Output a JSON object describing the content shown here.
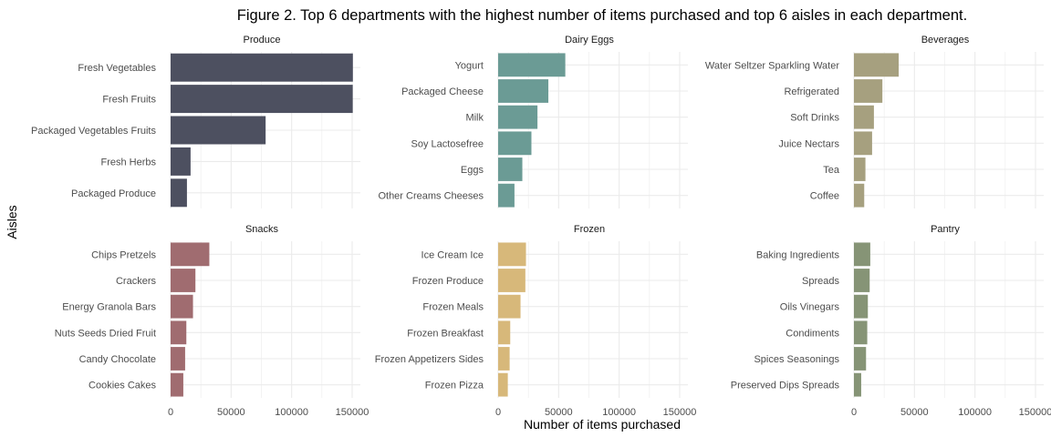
{
  "chart_data": {
    "type": "bar",
    "orientation": "horizontal",
    "title": "Figure 2. Top 6 departments with the highest number of items purchased and top 6 aisles in each department.",
    "xlabel": "Number of items purchased",
    "ylabel": "Aisles",
    "xlim": [
      0,
      155000
    ],
    "x_ticks": [
      0,
      50000,
      100000,
      150000
    ],
    "x_tick_labels": [
      "0",
      "50000",
      "100000",
      "150000"
    ],
    "grid": true,
    "panels": [
      {
        "department": "Produce",
        "color": "#4d5060",
        "categories": [
          "Fresh Vegetables",
          "Fresh Fruits",
          "Packaged Vegetables Fruits",
          "Fresh Herbs",
          "Packaged Produce"
        ],
        "values": [
          150600,
          150500,
          78500,
          16500,
          13500
        ]
      },
      {
        "department": "Dairy Eggs",
        "color": "#6b9b95",
        "categories": [
          "Yogurt",
          "Packaged Cheese",
          "Milk",
          "Soy Lactosefree",
          "Eggs",
          "Other Creams Cheeses"
        ],
        "values": [
          55500,
          41500,
          32500,
          27500,
          20000,
          13500
        ]
      },
      {
        "department": "Beverages",
        "color": "#a6a07f",
        "categories": [
          "Water Seltzer Sparkling Water",
          "Refrigerated",
          "Soft Drinks",
          "Juice Nectars",
          "Tea",
          "Coffee"
        ],
        "values": [
          37000,
          23500,
          16500,
          15000,
          9500,
          8500
        ]
      },
      {
        "department": "Snacks",
        "color": "#a06c70",
        "categories": [
          "Chips Pretzels",
          "Crackers",
          "Energy Granola Bars",
          "Nuts Seeds Dried Fruit",
          "Candy Chocolate",
          "Cookies Cakes"
        ],
        "values": [
          32000,
          20500,
          18500,
          13000,
          12000,
          10500
        ]
      },
      {
        "department": "Frozen",
        "color": "#d7b87a",
        "categories": [
          "Ice Cream Ice",
          "Frozen Produce",
          "Frozen Meals",
          "Frozen Breakfast",
          "Frozen Appetizers Sides",
          "Frozen Pizza"
        ],
        "values": [
          23000,
          22500,
          18500,
          10000,
          9500,
          8000
        ]
      },
      {
        "department": "Pantry",
        "color": "#869476",
        "categories": [
          "Baking Ingredients",
          "Spreads",
          "Oils Vinegars",
          "Condiments",
          "Spices Seasonings",
          "Preserved Dips Spreads"
        ],
        "values": [
          13500,
          13000,
          11500,
          11000,
          10000,
          6000
        ]
      }
    ]
  }
}
